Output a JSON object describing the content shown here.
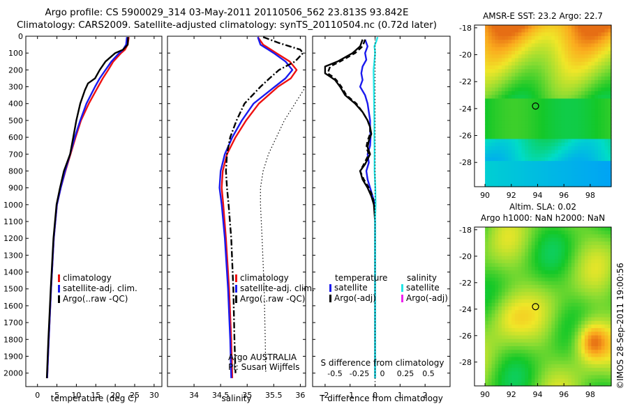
{
  "header": {
    "line1": "Argo profile: CS 5900029_314 03-May-2011 20110506_562 23.813S 93.842E",
    "line2": "Climatology: CARS2009. Satellite-adjusted climatology: synTS_20110504.nc (0.72d later)"
  },
  "colors": {
    "climatology": "#ee1111",
    "satellite": "#1a1aee",
    "argo": "#000000",
    "sal_satellite": "#22e6e6",
    "sal_argo": "#ee22ee"
  },
  "chart_data": [
    {
      "type": "line",
      "xlabel": "temperature (deg C)",
      "ylabel": "",
      "xlim": [
        -3,
        32
      ],
      "ylim": [
        2080,
        0
      ],
      "xticks": [
        0,
        5,
        10,
        15,
        20,
        25,
        30
      ],
      "yticks": [
        0,
        100,
        200,
        300,
        400,
        500,
        600,
        700,
        800,
        900,
        1000,
        1100,
        1200,
        1300,
        1400,
        1500,
        1600,
        1700,
        1800,
        1900,
        2000
      ],
      "legend": [
        "climatology",
        "satellite-adj. clim.",
        "Argo(..raw -QC)"
      ],
      "legend_position": "lower-center",
      "series": [
        {
          "name": "climatology",
          "style": "solid",
          "depth": [
            5,
            50,
            80,
            100,
            150,
            200,
            250,
            300,
            400,
            500,
            600,
            700,
            800,
            900,
            1000,
            1200,
            1500,
            1800,
            2030
          ],
          "values": [
            23.5,
            23.2,
            22.5,
            21.5,
            19.5,
            18.2,
            16.8,
            15.6,
            13.2,
            11.2,
            9.8,
            8.5,
            7.2,
            6.0,
            5.0,
            4.2,
            3.5,
            2.9,
            2.5
          ]
        },
        {
          "name": "satellite-adj. clim.",
          "style": "solid",
          "depth": [
            5,
            50,
            80,
            100,
            150,
            200,
            250,
            300,
            400,
            500,
            600,
            700,
            800,
            900,
            1000,
            1200,
            1500,
            1800,
            2030
          ],
          "values": [
            23.0,
            22.8,
            22.0,
            21.0,
            19.0,
            17.5,
            16.0,
            14.8,
            12.6,
            11.0,
            9.6,
            8.4,
            7.1,
            6.0,
            5.0,
            4.2,
            3.5,
            2.9,
            2.5
          ]
        },
        {
          "name": "Argo(..raw -QC)",
          "style": "solid",
          "depth": [
            5,
            50,
            80,
            100,
            150,
            200,
            250,
            280,
            320,
            400,
            500,
            600,
            700,
            800,
            900,
            1000,
            1200,
            1500,
            1800,
            2030
          ],
          "values": [
            23.3,
            23.2,
            22.0,
            20.0,
            17.5,
            16.0,
            14.8,
            13.0,
            12.2,
            11.0,
            10.0,
            9.2,
            8.4,
            6.8,
            5.8,
            4.9,
            4.1,
            3.4,
            2.8,
            2.4
          ]
        }
      ],
      "annotations": []
    },
    {
      "type": "line",
      "xlabel": "salinity",
      "ylabel": "",
      "xlim": [
        33.5,
        36.1
      ],
      "ylim": [
        2080,
        0
      ],
      "xticks": [
        34,
        34.5,
        35,
        35.5,
        36
      ],
      "legend": [
        "climatology",
        "satellite-adj. clim.",
        "Argo(..raw -QC)"
      ],
      "legend_position": "lower-right",
      "annotations": [
        "Argo AUSTRALIA",
        "PI: Susan Wijffels"
      ],
      "series": [
        {
          "name": "climatology",
          "style": "solid",
          "depth": [
            5,
            50,
            100,
            150,
            200,
            250,
            300,
            400,
            500,
            600,
            700,
            800,
            900,
            1000,
            1200,
            1500,
            1800,
            2030
          ],
          "values": [
            35.2,
            35.3,
            35.55,
            35.8,
            35.93,
            35.82,
            35.58,
            35.22,
            34.98,
            34.78,
            34.62,
            34.54,
            34.52,
            34.55,
            34.6,
            34.66,
            34.7,
            34.72
          ]
        },
        {
          "name": "satellite-adj. clim.",
          "style": "solid",
          "depth": [
            5,
            50,
            100,
            150,
            200,
            250,
            300,
            400,
            500,
            600,
            700,
            800,
            900,
            1000,
            1200,
            1500,
            1800,
            2030
          ],
          "values": [
            35.2,
            35.25,
            35.5,
            35.72,
            35.85,
            35.72,
            35.52,
            35.12,
            34.9,
            34.72,
            34.58,
            34.5,
            34.48,
            34.52,
            34.58,
            34.64,
            34.68,
            34.7
          ]
        },
        {
          "name": "Argo(..raw -QC)",
          "style": "dashdot",
          "depth": [
            5,
            40,
            80,
            100,
            150,
            200,
            250,
            300,
            400,
            500,
            600,
            700,
            800,
            900,
            1000,
            1200,
            1500,
            1800,
            2000
          ],
          "values": [
            35.3,
            35.6,
            36.0,
            36.05,
            35.9,
            35.6,
            35.42,
            35.25,
            34.95,
            34.8,
            34.68,
            34.62,
            34.6,
            34.62,
            34.65,
            34.7,
            34.74,
            34.76,
            34.78
          ]
        },
        {
          "name": "Argo raw",
          "style": "dotted",
          "depth": [
            300,
            400,
            500,
            600,
            700,
            800,
            900,
            1000,
            1200,
            1500,
            1800,
            2000
          ],
          "values": [
            36.1,
            35.9,
            35.7,
            35.55,
            35.4,
            35.3,
            35.25,
            35.25,
            35.28,
            35.32,
            35.34,
            35.35
          ]
        }
      ]
    },
    {
      "type": "line",
      "xlabel": "T difference from climatology",
      "ylabel": "",
      "xlim": [
        -2.5,
        3.0
      ],
      "ylim": [
        2080,
        0
      ],
      "xticks": [
        -2,
        -1,
        0,
        1,
        2
      ],
      "top_axis_label": "S difference from climatology",
      "top_ticks": [
        "-0.5",
        "-0.25",
        "0",
        "0.25",
        "0.5"
      ],
      "legend": [
        "temperature",
        "satellite",
        "Argo(-adj)",
        "salinity",
        "satellite",
        "Argo(-adj)"
      ],
      "legend_position": "lower-right",
      "series": [
        {
          "name": "T satellite",
          "style": "solid",
          "depth": [
            20,
            60,
            100,
            140,
            180,
            220,
            260,
            300,
            350,
            400,
            450,
            500,
            550,
            600,
            650,
            700,
            750,
            800,
            850,
            900,
            950,
            1000,
            1100,
            1500,
            2030
          ],
          "values": [
            -0.4,
            -0.3,
            -0.4,
            -0.35,
            -0.5,
            -0.55,
            -0.5,
            -0.6,
            -0.4,
            -0.3,
            -0.25,
            -0.2,
            -0.2,
            -0.18,
            -0.2,
            -0.3,
            -0.25,
            -0.35,
            -0.3,
            -0.2,
            -0.1,
            0.0,
            0.0,
            0.0,
            0.0
          ]
        },
        {
          "name": "T Argo(-adj)",
          "style": "solid",
          "depth": [
            20,
            60,
            100,
            150,
            180,
            220,
            240,
            260,
            300,
            350,
            400,
            450,
            500,
            540,
            580,
            620,
            660,
            700,
            760,
            800,
            850,
            900,
            950,
            1000,
            1100,
            1500,
            2030
          ],
          "values": [
            -0.5,
            -0.6,
            -0.9,
            -1.5,
            -2.0,
            -2.0,
            -1.8,
            -1.6,
            -1.4,
            -1.2,
            -0.8,
            -0.5,
            -0.3,
            -0.2,
            -0.15,
            -0.25,
            -0.3,
            -0.2,
            -0.4,
            -0.6,
            -0.5,
            -0.3,
            -0.15,
            -0.05,
            0.0,
            0.0,
            0.0
          ]
        },
        {
          "name": "T Argo dashed",
          "style": "dashed",
          "depth": [
            20,
            60,
            100,
            150,
            180,
            220,
            240,
            260,
            300,
            350,
            400,
            450,
            500,
            540,
            580,
            620,
            660,
            700,
            760,
            800,
            850,
            900,
            950,
            1000
          ],
          "values": [
            -0.4,
            -0.5,
            -0.8,
            -1.4,
            -1.8,
            -1.9,
            -1.7,
            -1.55,
            -1.35,
            -1.15,
            -0.75,
            -0.5,
            -0.3,
            -0.2,
            -0.2,
            -0.3,
            -0.35,
            -0.25,
            -0.45,
            -0.6,
            -0.45,
            -0.25,
            -0.1,
            -0.05
          ]
        },
        {
          "name": "S satellite",
          "style": "solid",
          "depth": [
            5,
            30,
            60,
            80,
            100,
            150,
            200,
            300,
            400,
            500,
            600,
            700,
            800,
            900,
            1000,
            1100,
            1500,
            2030
          ],
          "values": [
            0.1,
            0.05,
            -0.03,
            -0.01,
            0.0,
            -0.03,
            -0.06,
            -0.05,
            -0.04,
            -0.03,
            -0.03,
            -0.02,
            -0.02,
            0.01,
            0.02,
            0.0,
            0.0,
            0.0
          ]
        },
        {
          "name": "zero line",
          "style": "dotted",
          "depth": [
            0,
            2080
          ],
          "values": [
            0.0,
            0.0
          ]
        }
      ]
    },
    {
      "type": "heatmap",
      "title": "AMSR-E SST: 23.2 Argo: 22.7",
      "xlim": [
        89.2,
        99.6
      ],
      "ylim": [
        -29.8,
        -17.8
      ],
      "xticks": [
        90,
        92,
        94,
        96,
        98
      ],
      "yticks": [
        -18,
        -20,
        -22,
        -24,
        -26,
        -28
      ],
      "marker": {
        "lon": 93.842,
        "lat": -23.813
      }
    },
    {
      "type": "heatmap",
      "title": "Altim. SLA: 0.02",
      "subtitle": "Argo h1000: NaN h2000: NaN",
      "xlim": [
        89.2,
        99.6
      ],
      "ylim": [
        -29.8,
        -17.8
      ],
      "xticks": [
        90,
        92,
        94,
        96,
        98
      ],
      "yticks": [
        -18,
        -20,
        -22,
        -24,
        -26,
        -28
      ],
      "marker": {
        "lon": 93.842,
        "lat": -23.813
      }
    }
  ],
  "legends": {
    "temp": [
      "climatology",
      "satellite-adj. clim.",
      "Argo(..raw -QC)"
    ],
    "sal": [
      "climatology",
      "satellite-adj. clim.",
      "Argo(..raw -QC)"
    ],
    "diff_left_title": "temperature",
    "diff_left": [
      "satellite",
      "Argo(-adj)"
    ],
    "diff_right_title": "salinity",
    "diff_right": [
      "satellite",
      "Argo(-adj)"
    ]
  },
  "annotations": {
    "argo_country": "Argo AUSTRALIA",
    "pi": "PI: Susan Wijffels"
  },
  "footer": "©IMOS 28-Sep-2011 19:00:56"
}
